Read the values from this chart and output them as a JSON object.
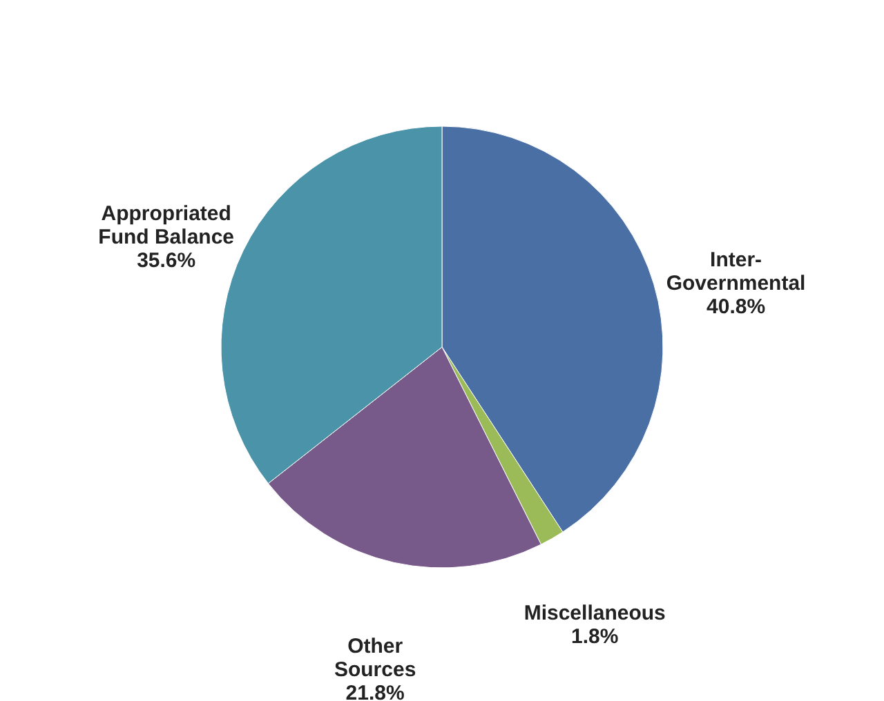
{
  "chart_data": {
    "type": "pie",
    "categories": [
      "Inter-Governmental",
      "Miscellaneous",
      "Other Sources",
      "Appropriated Fund Balance"
    ],
    "values": [
      40.8,
      1.8,
      21.8,
      35.6
    ],
    "colors": [
      "#4a6fa5",
      "#9bbb59",
      "#775a8a",
      "#4a93a8"
    ],
    "value_labels": [
      "40.8%",
      "1.8%",
      "21.8%",
      "35.6%"
    ],
    "legend": false
  }
}
